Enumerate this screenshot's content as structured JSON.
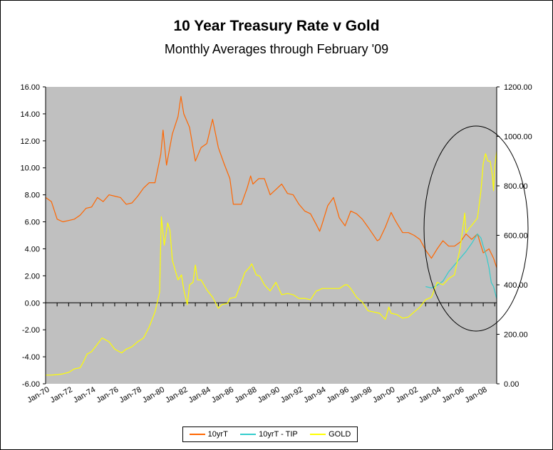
{
  "chart_data": {
    "type": "line",
    "title": "10 Year Treasury Rate v Gold",
    "subtitle": "Monthly Averages through February '09",
    "left_axis": {
      "min": -6,
      "max": 16,
      "step": 2,
      "tick_labels": [
        "-6.00",
        "-4.00",
        "-2.00",
        "0.00",
        "2.00",
        "4.00",
        "6.00",
        "8.00",
        "10.00",
        "12.00",
        "14.00",
        "16.00"
      ]
    },
    "right_axis": {
      "min": 0,
      "max": 1200,
      "step": 200,
      "tick_labels": [
        "0.00",
        "200.00",
        "400.00",
        "600.00",
        "800.00",
        "1000.00",
        "1200.00"
      ]
    },
    "x_axis": {
      "start": 1970.0,
      "end": 2009.17,
      "tick_labels": [
        "Jan-70",
        "Jan-72",
        "Jan-74",
        "Jan-76",
        "Jan-78",
        "Jan-80",
        "Jan-82",
        "Jan-84",
        "Jan-86",
        "Jan-88",
        "Jan-90",
        "Jan-92",
        "Jan-94",
        "Jan-96",
        "Jan-98",
        "Jan-00",
        "Jan-02",
        "Jan-04",
        "Jan-06",
        "Jan-08"
      ]
    },
    "series": [
      {
        "name": "10yrT",
        "color": "#FF6600",
        "axis": "left",
        "x": [
          1970.0,
          1970.5,
          1971.0,
          1971.5,
          1972.0,
          1972.5,
          1973.0,
          1973.5,
          1974.0,
          1974.5,
          1975.0,
          1975.5,
          1976.0,
          1976.5,
          1977.0,
          1977.5,
          1978.0,
          1978.5,
          1979.0,
          1979.5,
          1980.0,
          1980.2,
          1980.5,
          1981.0,
          1981.5,
          1981.75,
          1982.0,
          1982.5,
          1983.0,
          1983.5,
          1984.0,
          1984.5,
          1985.0,
          1985.5,
          1986.0,
          1986.3,
          1986.5,
          1987.0,
          1987.5,
          1987.8,
          1988.0,
          1988.5,
          1989.0,
          1989.5,
          1990.0,
          1990.5,
          1991.0,
          1991.5,
          1992.0,
          1992.5,
          1993.0,
          1993.5,
          1993.8,
          1994.0,
          1994.5,
          1995.0,
          1995.5,
          1996.0,
          1996.5,
          1997.0,
          1997.5,
          1998.0,
          1998.8,
          1999.0,
          1999.5,
          2000.0,
          2000.3,
          2000.5,
          2001.0,
          2001.5,
          2002.0,
          2002.5,
          2003.0,
          2003.5,
          2004.0,
          2004.5,
          2005.0,
          2005.5,
          2006.0,
          2006.5,
          2007.0,
          2007.5,
          2008.0,
          2008.5,
          2008.9,
          2009.17
        ],
        "values": [
          7.8,
          7.5,
          6.2,
          6.0,
          6.1,
          6.2,
          6.5,
          7.0,
          7.1,
          7.8,
          7.5,
          8.0,
          7.9,
          7.8,
          7.3,
          7.4,
          7.9,
          8.5,
          8.9,
          8.9,
          11.0,
          12.8,
          10.2,
          12.5,
          13.8,
          15.3,
          14.0,
          13.0,
          10.5,
          11.5,
          11.8,
          13.6,
          11.5,
          10.3,
          9.2,
          7.3,
          7.3,
          7.3,
          8.5,
          9.4,
          8.8,
          9.2,
          9.2,
          8.0,
          8.4,
          8.8,
          8.1,
          8.0,
          7.3,
          6.8,
          6.6,
          5.8,
          5.3,
          5.8,
          7.2,
          7.8,
          6.3,
          5.7,
          6.8,
          6.6,
          6.2,
          5.6,
          4.6,
          4.7,
          5.6,
          6.7,
          6.2,
          5.9,
          5.2,
          5.2,
          5.0,
          4.7,
          3.9,
          3.3,
          4.0,
          4.6,
          4.2,
          4.2,
          4.5,
          5.1,
          4.7,
          5.1,
          3.7,
          4.0,
          3.3,
          2.6
        ]
      },
      {
        "name": "10yrT - TIP",
        "color": "#33CCCC",
        "axis": "left",
        "x": [
          2003.0,
          2003.5,
          2004.0,
          2004.5,
          2005.0,
          2005.5,
          2006.0,
          2006.5,
          2007.0,
          2007.5,
          2007.8,
          2008.0,
          2008.3,
          2008.5,
          2008.7,
          2008.9,
          2009.17
        ],
        "values": [
          1.2,
          1.1,
          1.3,
          1.6,
          2.3,
          2.8,
          3.3,
          3.8,
          4.4,
          5.1,
          4.8,
          4.2,
          3.4,
          2.6,
          1.5,
          1.2,
          0.3
        ]
      },
      {
        "name": "GOLD",
        "color": "#FFFF00",
        "axis": "right",
        "x": [
          1970.0,
          1970.5,
          1971.0,
          1971.5,
          1972.0,
          1972.5,
          1973.0,
          1973.3,
          1973.6,
          1974.0,
          1974.5,
          1974.9,
          1975.5,
          1976.0,
          1976.6,
          1977.0,
          1977.5,
          1978.0,
          1978.5,
          1979.0,
          1979.5,
          1979.9,
          1980.05,
          1980.3,
          1980.6,
          1980.8,
          1981.0,
          1981.5,
          1981.8,
          1982.0,
          1982.3,
          1982.5,
          1982.8,
          1983.0,
          1983.2,
          1983.5,
          1984.0,
          1984.5,
          1985.0,
          1985.3,
          1985.8,
          1986.0,
          1986.5,
          1987.0,
          1987.3,
          1987.7,
          1987.9,
          1988.3,
          1988.6,
          1989.0,
          1989.5,
          1990.0,
          1990.5,
          1991.0,
          1991.5,
          1992.0,
          1992.5,
          1993.0,
          1993.5,
          1993.8,
          1994.0,
          1994.5,
          1995.0,
          1995.5,
          1996.0,
          1996.2,
          1996.5,
          1997.0,
          1997.5,
          1998.0,
          1998.5,
          1999.0,
          1999.5,
          1999.8,
          2000.0,
          2000.5,
          2001.0,
          2001.5,
          2002.0,
          2002.5,
          2003.0,
          2003.5,
          2004.0,
          2004.5,
          2005.0,
          2005.5,
          2006.0,
          2006.4,
          2006.5,
          2006.8,
          2007.0,
          2007.5,
          2007.8,
          2008.0,
          2008.2,
          2008.4,
          2008.6,
          2008.8,
          2008.9,
          2009.0,
          2009.17
        ],
        "values": [
          35,
          35,
          37,
          40,
          46,
          60,
          65,
          90,
          120,
          130,
          160,
          185,
          170,
          140,
          125,
          140,
          150,
          170,
          185,
          230,
          290,
          370,
          675,
          560,
          650,
          620,
          500,
          420,
          440,
          380,
          320,
          400,
          410,
          480,
          420,
          420,
          380,
          350,
          305,
          320,
          325,
          345,
          350,
          410,
          450,
          470,
          485,
          440,
          435,
          400,
          375,
          410,
          360,
          365,
          360,
          345,
          345,
          340,
          375,
          380,
          385,
          385,
          385,
          385,
          400,
          400,
          385,
          350,
          330,
          295,
          290,
          285,
          260,
          310,
          285,
          280,
          265,
          270,
          290,
          310,
          340,
          350,
          410,
          400,
          425,
          440,
          550,
          690,
          610,
          630,
          640,
          670,
          780,
          890,
          930,
          900,
          900,
          840,
          780,
          880,
          940
        ]
      }
    ]
  },
  "legend": {
    "items": [
      {
        "label": "10yrT",
        "color": "#FF6600"
      },
      {
        "label": "10yrT - TIP",
        "color": "#33CCCC"
      },
      {
        "label": "GOLD",
        "color": "#FFFF00"
      }
    ]
  },
  "annotation": {
    "shape": "ellipse",
    "color": "#000000"
  }
}
